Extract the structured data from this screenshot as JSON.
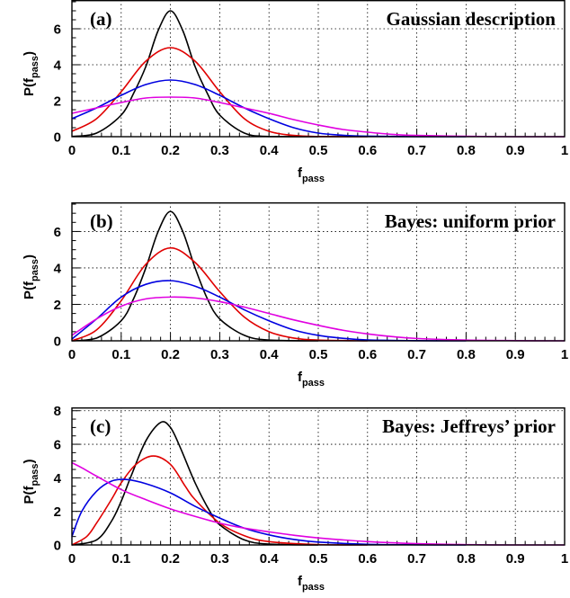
{
  "chart_data": [
    {
      "type": "line",
      "panel_label": "(a)",
      "title": "Gaussian description",
      "xlabel": "f",
      "xlabel_sub": "pass",
      "ylabel": "P(f",
      "ylabel_sub": "pass",
      "ylabel_close": ")",
      "xlim": [
        0,
        1
      ],
      "ylim": [
        0,
        7.6
      ],
      "xticks": [
        "0",
        "0.1",
        "0.2",
        "0.3",
        "0.4",
        "0.5",
        "0.6",
        "0.7",
        "0.8",
        "0.9",
        "1"
      ],
      "yticks": [
        0,
        2,
        4,
        6
      ],
      "grid": true,
      "series": [
        {
          "color": "#000000",
          "x": [
            0,
            0.05,
            0.1,
            0.125,
            0.15,
            0.175,
            0.2,
            0.225,
            0.25,
            0.275,
            0.3,
            0.35,
            0.4,
            0.5
          ],
          "y": [
            0.01,
            0.2,
            1.2,
            2.4,
            3.9,
            5.9,
            7.0,
            5.9,
            3.9,
            2.4,
            1.2,
            0.2,
            0.01,
            0
          ]
        },
        {
          "color": "#e00000",
          "x": [
            0,
            0.05,
            0.1,
            0.15,
            0.2,
            0.25,
            0.3,
            0.35,
            0.4,
            0.45,
            0.5,
            0.6
          ],
          "y": [
            0.3,
            1.0,
            2.5,
            4.2,
            4.95,
            4.2,
            2.5,
            1.0,
            0.3,
            0.07,
            0.01,
            0
          ]
        },
        {
          "color": "#0000e0",
          "x": [
            0,
            0.05,
            0.1,
            0.15,
            0.2,
            0.25,
            0.3,
            0.35,
            0.4,
            0.45,
            0.5,
            0.55,
            0.6,
            0.7,
            0.8
          ],
          "y": [
            1.0,
            1.6,
            2.3,
            2.9,
            3.15,
            2.9,
            2.3,
            1.6,
            1.0,
            0.5,
            0.2,
            0.08,
            0.03,
            0,
            0
          ]
        },
        {
          "color": "#e000e0",
          "x": [
            0,
            0.05,
            0.1,
            0.15,
            0.2,
            0.25,
            0.3,
            0.35,
            0.4,
            0.45,
            0.5,
            0.55,
            0.6,
            0.65,
            0.7,
            0.8,
            0.9,
            1.0
          ],
          "y": [
            1.3,
            1.6,
            1.9,
            2.15,
            2.2,
            2.15,
            1.9,
            1.6,
            1.3,
            0.95,
            0.65,
            0.4,
            0.25,
            0.13,
            0.07,
            0.02,
            0,
            0
          ]
        }
      ]
    },
    {
      "type": "line",
      "panel_label": "(b)",
      "title": "Bayes: uniform prior",
      "xlabel": "f",
      "xlabel_sub": "pass",
      "ylabel": "P(f",
      "ylabel_sub": "pass",
      "ylabel_close": ")",
      "xlim": [
        0,
        1
      ],
      "ylim": [
        0,
        7.6
      ],
      "xticks": [
        "0",
        "0.1",
        "0.2",
        "0.3",
        "0.4",
        "0.5",
        "0.6",
        "0.7",
        "0.8",
        "0.9",
        "1"
      ],
      "yticks": [
        0,
        2,
        4,
        6
      ],
      "grid": true,
      "series": [
        {
          "color": "#000000",
          "x": [
            0,
            0.05,
            0.1,
            0.125,
            0.15,
            0.175,
            0.2,
            0.225,
            0.25,
            0.275,
            0.3,
            0.35,
            0.4,
            0.5
          ],
          "y": [
            0,
            0.15,
            1.1,
            2.3,
            4.0,
            6.0,
            7.1,
            6.0,
            4.0,
            2.3,
            1.2,
            0.3,
            0.04,
            0
          ]
        },
        {
          "color": "#e00000",
          "x": [
            0,
            0.05,
            0.1,
            0.15,
            0.2,
            0.25,
            0.3,
            0.35,
            0.4,
            0.45,
            0.5,
            0.6
          ],
          "y": [
            0,
            0.6,
            2.2,
            4.2,
            5.1,
            4.3,
            2.7,
            1.3,
            0.5,
            0.15,
            0.04,
            0
          ]
        },
        {
          "color": "#0000e0",
          "x": [
            0,
            0.05,
            0.1,
            0.15,
            0.2,
            0.25,
            0.3,
            0.35,
            0.4,
            0.45,
            0.5,
            0.55,
            0.6,
            0.7,
            0.8
          ],
          "y": [
            0.1,
            1.2,
            2.4,
            3.1,
            3.3,
            3.0,
            2.4,
            1.7,
            1.1,
            0.6,
            0.3,
            0.14,
            0.05,
            0.01,
            0
          ]
        },
        {
          "color": "#e000e0",
          "x": [
            0,
            0.05,
            0.1,
            0.15,
            0.2,
            0.25,
            0.3,
            0.35,
            0.4,
            0.45,
            0.5,
            0.55,
            0.6,
            0.65,
            0.7,
            0.8,
            0.9,
            1.0
          ],
          "y": [
            0.3,
            1.2,
            1.9,
            2.3,
            2.4,
            2.35,
            2.15,
            1.85,
            1.5,
            1.15,
            0.85,
            0.58,
            0.38,
            0.23,
            0.13,
            0.04,
            0.01,
            0
          ]
        }
      ]
    },
    {
      "type": "line",
      "panel_label": "(c)",
      "title": "Bayes: Jeffreys’ prior",
      "xlabel": "f",
      "xlabel_sub": "pass",
      "ylabel": "P(f",
      "ylabel_sub": "pass",
      "ylabel_close": ")",
      "xlim": [
        0,
        1
      ],
      "ylim": [
        0,
        8.2
      ],
      "xticks": [
        "0",
        "0.1",
        "0.2",
        "0.3",
        "0.4",
        "0.5",
        "0.6",
        "0.7",
        "0.8",
        "0.9",
        "1"
      ],
      "yticks": [
        0,
        2,
        4,
        6,
        8
      ],
      "grid": true,
      "series": [
        {
          "color": "#000000",
          "x": [
            0,
            0.05,
            0.08,
            0.1,
            0.12,
            0.15,
            0.18,
            0.2,
            0.22,
            0.25,
            0.28,
            0.3,
            0.35,
            0.4,
            0.5
          ],
          "y": [
            0,
            0.3,
            1.4,
            2.6,
            4.1,
            6.2,
            7.3,
            7.0,
            5.8,
            3.7,
            2.0,
            1.2,
            0.3,
            0.05,
            0
          ]
        },
        {
          "color": "#e00000",
          "x": [
            0,
            0.03,
            0.05,
            0.08,
            0.1,
            0.13,
            0.165,
            0.2,
            0.23,
            0.25,
            0.3,
            0.35,
            0.4,
            0.5,
            0.6
          ],
          "y": [
            0,
            0.5,
            1.3,
            2.7,
            3.7,
            4.8,
            5.3,
            4.8,
            3.5,
            2.7,
            1.3,
            0.55,
            0.2,
            0.02,
            0
          ]
        },
        {
          "color": "#0000e0",
          "x": [
            0,
            0.02,
            0.05,
            0.08,
            0.11,
            0.15,
            0.2,
            0.25,
            0.3,
            0.35,
            0.4,
            0.45,
            0.5,
            0.6,
            0.7,
            0.8
          ],
          "y": [
            0.5,
            2.0,
            3.2,
            3.8,
            3.9,
            3.65,
            3.1,
            2.3,
            1.6,
            1.0,
            0.6,
            0.33,
            0.17,
            0.04,
            0.01,
            0
          ]
        },
        {
          "color": "#e000e0",
          "x": [
            0,
            0.02,
            0.05,
            0.1,
            0.15,
            0.2,
            0.25,
            0.3,
            0.35,
            0.4,
            0.45,
            0.5,
            0.6,
            0.7,
            0.8,
            0.9,
            1.0
          ],
          "y": [
            4.9,
            4.6,
            4.1,
            3.3,
            2.7,
            2.15,
            1.7,
            1.3,
            1.0,
            0.78,
            0.58,
            0.42,
            0.2,
            0.08,
            0.02,
            0,
            0
          ]
        }
      ]
    }
  ]
}
